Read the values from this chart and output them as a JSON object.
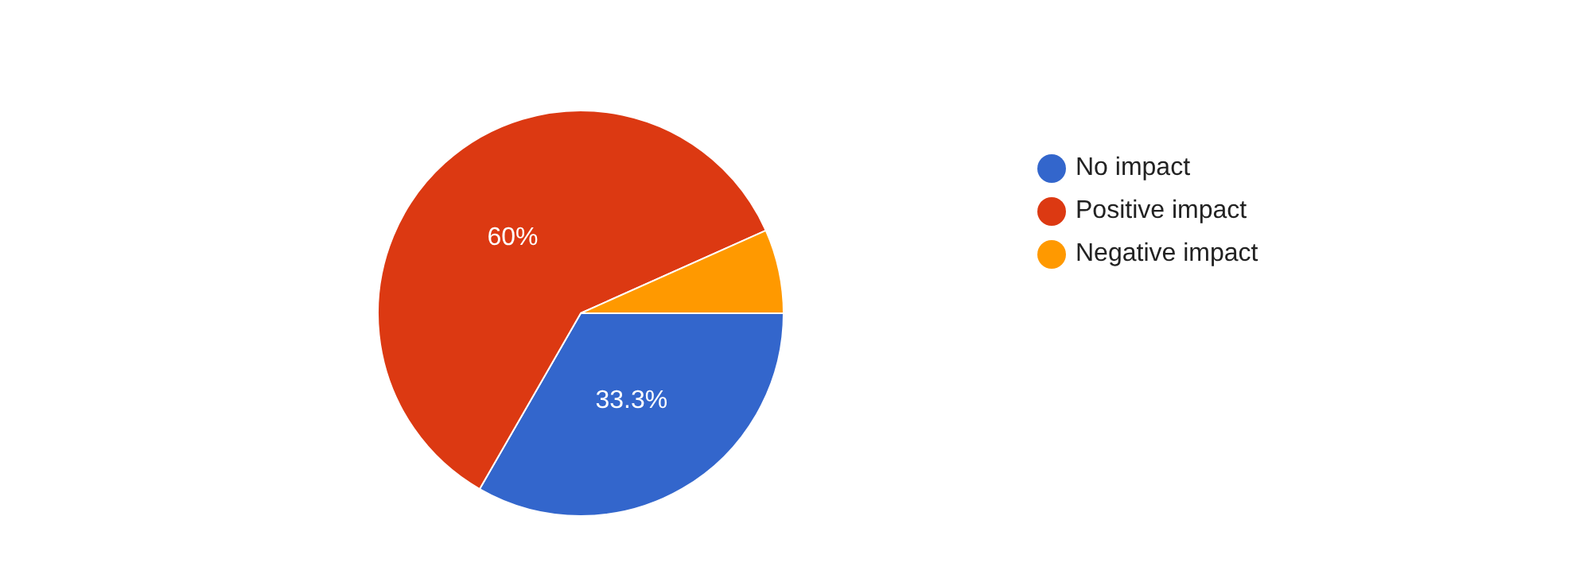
{
  "chart_data": {
    "type": "pie",
    "categories": [
      "No impact",
      "Positive impact",
      "Negative impact"
    ],
    "values": [
      33.3,
      60,
      6.7
    ],
    "colors": [
      "#3366cc",
      "#dc3912",
      "#ff9900"
    ],
    "value_labels": [
      "33.3%",
      "60%",
      null
    ],
    "legend": "top right"
  }
}
